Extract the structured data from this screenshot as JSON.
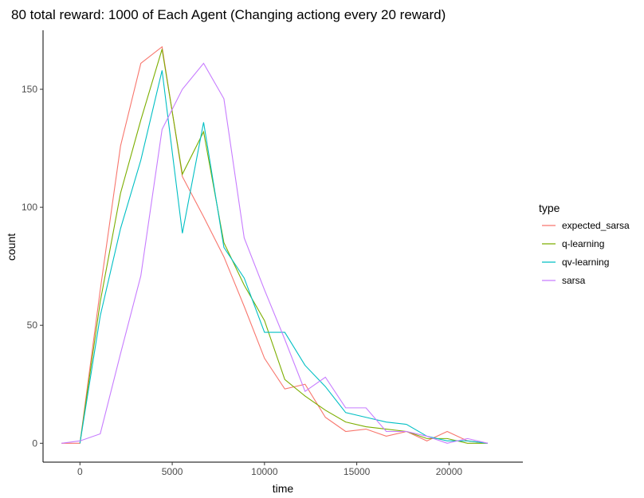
{
  "chart_data": {
    "type": "line",
    "title": "80 total reward: 1000 of Each Agent (Changing actiong every 20 reward)",
    "xlabel": "time",
    "ylabel": "count",
    "xlim": [
      -2000,
      24000
    ],
    "ylim": [
      -8,
      175
    ],
    "xticks": [
      0,
      5000,
      10000,
      15000,
      20000
    ],
    "yticks": [
      0,
      50,
      100,
      150
    ],
    "grid": false,
    "legend": {
      "title": "type",
      "position": "right"
    },
    "series": [
      {
        "name": "expected_sarsa",
        "color": "#F8766D",
        "x": [
          -1000,
          0,
          1100,
          2200,
          3300,
          4450,
          5550,
          6700,
          7800,
          8900,
          10000,
          11100,
          12200,
          13300,
          14400,
          15500,
          16600,
          17700,
          18800,
          19900,
          21000,
          22100
        ],
        "y": [
          0,
          0,
          65,
          126,
          161,
          168,
          113,
          96,
          79,
          58,
          36,
          23,
          25,
          11,
          5,
          6,
          3,
          5,
          1,
          5,
          1,
          0
        ]
      },
      {
        "name": "q-learning",
        "color": "#7CAE00",
        "x": [
          0,
          1100,
          2200,
          3300,
          4450,
          5550,
          6700,
          7800,
          8900,
          10000,
          11100,
          12200,
          13300,
          14400,
          15500,
          16600,
          17700,
          18800,
          19900,
          21000,
          22100
        ],
        "y": [
          0,
          60,
          106,
          137,
          167,
          114,
          132,
          85,
          67,
          52,
          27,
          20,
          14,
          9,
          7,
          6,
          5,
          2,
          2,
          0,
          0
        ]
      },
      {
        "name": "qv-learning",
        "color": "#00BFC4",
        "x": [
          0,
          1100,
          2200,
          3300,
          4450,
          5550,
          6700,
          7800,
          8900,
          10000,
          11100,
          12200,
          13300,
          14400,
          15500,
          16600,
          17700,
          18800,
          19900,
          21000,
          22100
        ],
        "y": [
          0,
          54,
          91,
          120,
          158,
          89,
          136,
          83,
          70,
          47,
          47,
          33,
          24,
          13,
          11,
          9,
          8,
          3,
          1,
          1,
          0
        ]
      },
      {
        "name": "sarsa",
        "color": "#C77CFF",
        "x": [
          -1000,
          0,
          1100,
          2200,
          3300,
          4450,
          5550,
          6700,
          7800,
          8900,
          10000,
          11100,
          12200,
          13300,
          14400,
          15500,
          16600,
          17700,
          18800,
          19900,
          21000,
          22100
        ],
        "y": [
          0,
          1,
          4,
          38,
          71,
          133,
          150,
          161,
          146,
          87,
          65,
          44,
          22,
          28,
          15,
          15,
          5,
          5,
          3,
          0,
          2,
          0
        ]
      }
    ]
  }
}
